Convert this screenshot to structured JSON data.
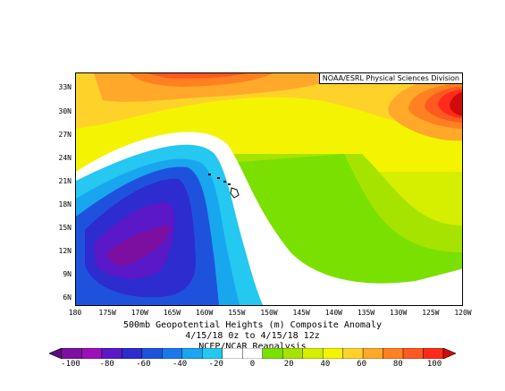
{
  "map": {
    "credit": "NOAA/ESRL Physical Sciences Division",
    "lat_labels": [
      "33N",
      "30N",
      "27N",
      "24N",
      "21N",
      "18N",
      "15N",
      "12N",
      "9N",
      "6N"
    ],
    "lon_labels": [
      "180",
      "175W",
      "170W",
      "165W",
      "160W",
      "155W",
      "150W",
      "145W",
      "140W",
      "135W",
      "130W",
      "125W",
      "120W"
    ],
    "title_line1": "500mb Geopotential Heights (m)    Composite Anomaly",
    "title_line2": "4/15/18 0z  to 4/15/18 12z",
    "source": "NCEP/NCAR Reanalysis",
    "extent": {
      "lon_min": -180,
      "lon_max": -120,
      "lat_min": 5,
      "lat_max": 35
    }
  },
  "colorbar": {
    "labels": [
      "-100",
      "-80",
      "-60",
      "-40",
      "-20",
      "0",
      "20",
      "40",
      "60",
      "80",
      "100"
    ],
    "colors": [
      "#5a0a82",
      "#7d0fa0",
      "#9a10b8",
      "#5a18c8",
      "#2d2ccf",
      "#1f52dc",
      "#1a78e8",
      "#18a6ee",
      "#24c8f0",
      "#ffffff",
      "#ffffff",
      "#7ae000",
      "#a6e400",
      "#d6ee00",
      "#f4f400",
      "#ffd22a",
      "#ffa82a",
      "#ff8020",
      "#ff5820",
      "#ff2a1a",
      "#d10a0a"
    ]
  },
  "colors": {
    "land": "#000000",
    "highest": "#c30000"
  }
}
